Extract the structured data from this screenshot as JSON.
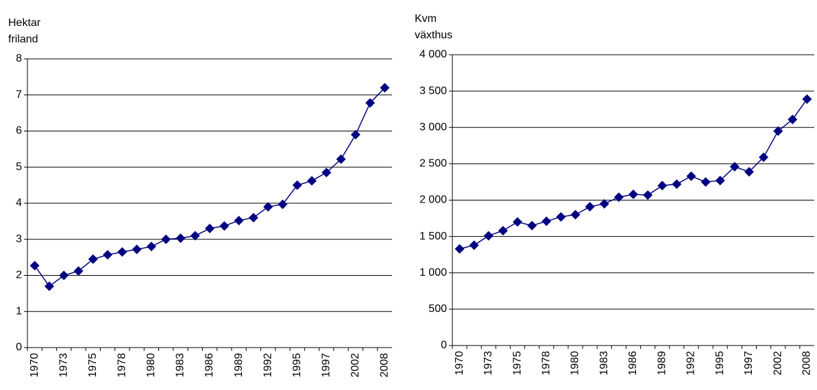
{
  "chart_data": [
    {
      "type": "line",
      "y_label": [
        "Hektar",
        "friland"
      ],
      "categories": [
        "1970",
        null,
        "1973",
        null,
        "1975",
        null,
        "1978",
        null,
        "1980",
        null,
        "1983",
        null,
        "1986",
        null,
        "1989",
        null,
        "1992",
        null,
        "1995",
        null,
        "1997",
        null,
        "2002",
        null,
        "2008"
      ],
      "series": [
        {
          "color": "#000080",
          "values": [
            2.27,
            1.7,
            2.0,
            2.12,
            2.45,
            2.57,
            2.65,
            2.72,
            2.8,
            3.0,
            3.03,
            3.1,
            3.3,
            3.37,
            3.52,
            3.6,
            3.9,
            3.97,
            4.5,
            4.62,
            4.85,
            5.22,
            5.9,
            6.78,
            7.2
          ]
        }
      ],
      "ylim": [
        0,
        8
      ],
      "yticks": [
        0,
        1,
        2,
        3,
        4,
        5,
        6,
        7,
        8
      ],
      "grid": true
    },
    {
      "type": "line",
      "y_label": [
        "Kvm",
        "växthus"
      ],
      "categories": [
        "1970",
        null,
        "1973",
        null,
        "1975",
        null,
        "1978",
        null,
        "1980",
        null,
        "1983",
        null,
        "1986",
        null,
        "1989",
        null,
        "1992",
        null,
        "1995",
        null,
        "1997",
        null,
        "2002",
        null,
        "2008"
      ],
      "series": [
        {
          "color": "#000080",
          "values": [
            1330,
            1380,
            1510,
            1580,
            1700,
            1650,
            1710,
            1770,
            1800,
            1910,
            1950,
            2040,
            2080,
            2070,
            2200,
            2220,
            2330,
            2250,
            2270,
            2460,
            2390,
            2590,
            2950,
            3110,
            3390
          ]
        }
      ],
      "ylim": [
        0,
        4000
      ],
      "yticks": [
        0,
        500,
        {
          "value": 1000,
          "label": "1 000"
        },
        {
          "value": 1500,
          "label": "1 500"
        },
        {
          "value": 2000,
          "label": "2 000"
        },
        {
          "value": 2500,
          "label": "2 500"
        },
        {
          "value": 3000,
          "label": "3 000"
        },
        {
          "value": 3500,
          "label": "3 500"
        },
        {
          "value": 4000,
          "label": "4 000"
        }
      ],
      "grid": true
    }
  ]
}
